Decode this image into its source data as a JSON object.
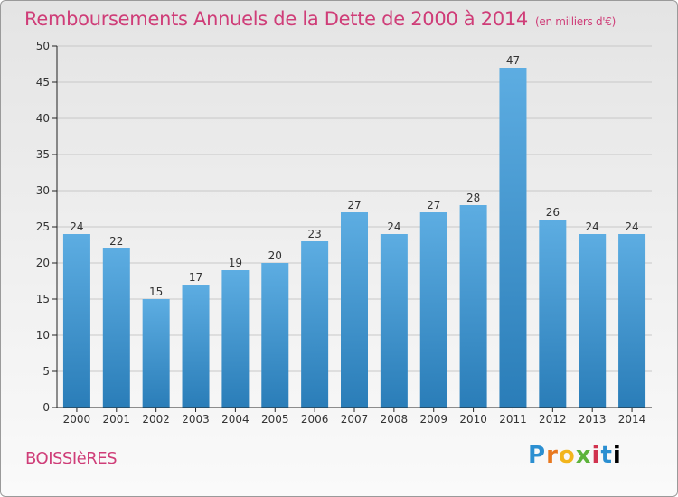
{
  "header": {
    "title": "Remboursements Annuels de la Dette de 2000 à 2014",
    "unit": "(en milliers d'€)"
  },
  "footer": {
    "city": "BOISSIèRES",
    "brand": [
      "P",
      "r",
      "o",
      "x",
      "i",
      "t",
      "i"
    ]
  },
  "colors": {
    "bar_top": "#5dade2",
    "bar_bottom": "#2a7db8",
    "title": "#cf3d78",
    "grid": "#c8c8c8",
    "axis": "#222222"
  },
  "chart_data": {
    "type": "bar",
    "title": "Remboursements Annuels de la Dette de 2000 à 2014",
    "subtitle": "(en milliers d'€)",
    "xlabel": "",
    "ylabel": "",
    "categories": [
      "2000",
      "2001",
      "2002",
      "2003",
      "2004",
      "2005",
      "2006",
      "2007",
      "2008",
      "2009",
      "2010",
      "2011",
      "2012",
      "2013",
      "2014"
    ],
    "values": [
      24,
      22,
      15,
      17,
      19,
      20,
      23,
      27,
      24,
      27,
      28,
      47,
      26,
      24,
      24
    ],
    "ylim": [
      0,
      50
    ],
    "yticks": [
      0,
      5,
      10,
      15,
      20,
      25,
      30,
      35,
      40,
      45,
      50
    ],
    "grid": true,
    "data_labels": true
  }
}
